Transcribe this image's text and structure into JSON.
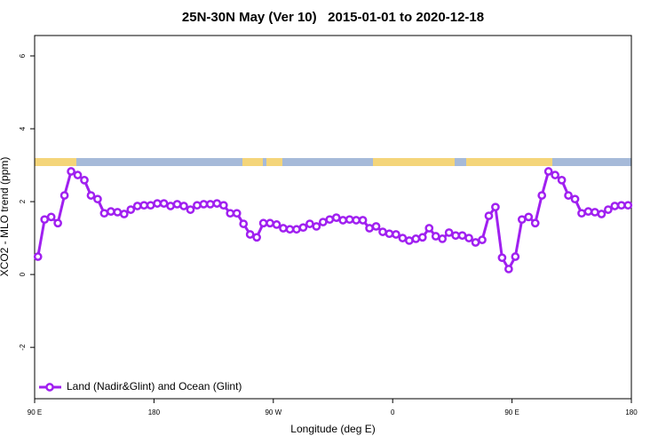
{
  "chart_data": {
    "type": "line",
    "title": "25N-30N May (Ver 10)   2015-01-01 to 2020-12-18",
    "x_label": "Longitude (deg E)",
    "y_label": "XCO2 - MLO trend (ppm)",
    "x": [
      92.5,
      97.5,
      102.5,
      107.5,
      112.5,
      117.5,
      122.5,
      127.5,
      132.5,
      137.5,
      142.5,
      147.5,
      152.5,
      157.5,
      162.5,
      167.5,
      172.5,
      177.5,
      182.5,
      187.5,
      192.5,
      197.5,
      202.5,
      207.5,
      212.5,
      217.5,
      222.5,
      227.5,
      232.5,
      237.5,
      242.5,
      247.5,
      252.5,
      257.5,
      262.5,
      267.5,
      272.5,
      277.5,
      282.5,
      287.5,
      292.5,
      297.5,
      302.5,
      307.5,
      312.5,
      317.5,
      322.5,
      327.5,
      332.5,
      337.5,
      342.5,
      347.5,
      352.5,
      357.5,
      362.5,
      367.5,
      372.5,
      377.5,
      382.5,
      387.5,
      392.5,
      397.5,
      402.5,
      407.5,
      412.5,
      417.5,
      422.5,
      427.5,
      432.5,
      437.5,
      442.5,
      447.5,
      452.5,
      457.5,
      462.5,
      467.5,
      472.5,
      477.5,
      482.5,
      487.5,
      492.5,
      497.5,
      502.5,
      507.5,
      512.5,
      517.5,
      522.5,
      527.5,
      532.5,
      537.5
    ],
    "series": [
      {
        "name": "Land (Nadir&Glint) and Ocean (Glint)",
        "color": "#a020f0",
        "values": [
          0.49,
          1.51,
          1.58,
          1.41,
          2.17,
          2.83,
          2.73,
          2.59,
          2.17,
          2.07,
          1.68,
          1.73,
          1.71,
          1.66,
          1.78,
          1.88,
          1.9,
          1.9,
          1.95,
          1.95,
          1.88,
          1.93,
          1.88,
          1.78,
          1.9,
          1.93,
          1.93,
          1.95,
          1.9,
          1.68,
          1.68,
          1.39,
          1.1,
          1.02,
          1.41,
          1.41,
          1.37,
          1.27,
          1.24,
          1.24,
          1.29,
          1.39,
          1.32,
          1.44,
          1.51,
          1.56,
          1.49,
          1.51,
          1.49,
          1.49,
          1.27,
          1.32,
          1.17,
          1.12,
          1.1,
          1.0,
          0.93,
          0.98,
          1.02,
          1.27,
          1.05,
          0.98,
          1.15,
          1.07,
          1.07,
          1.0,
          0.88,
          0.95,
          1.61,
          1.85,
          0.46,
          0.15,
          0.49,
          1.51,
          1.58,
          1.41,
          2.17,
          2.83,
          2.73,
          2.59,
          2.17,
          2.07,
          1.68,
          1.73,
          1.71,
          1.66,
          1.78,
          1.88,
          1.9,
          1.9
        ]
      }
    ],
    "xlim": [
      90,
      540
    ],
    "xticks": [
      {
        "value": 90,
        "label": "90 E"
      },
      180,
      {
        "value": 270,
        "label": "90 W"
      },
      {
        "value": 360,
        "label": "0"
      },
      {
        "value": 450,
        "label": "90 E"
      },
      {
        "value": 540,
        "label": "180"
      }
    ],
    "ylim": [
      -3.41,
      6.56
    ],
    "yticks": [
      -2,
      0,
      2,
      4,
      6
    ],
    "legend": "bottom-left"
  }
}
